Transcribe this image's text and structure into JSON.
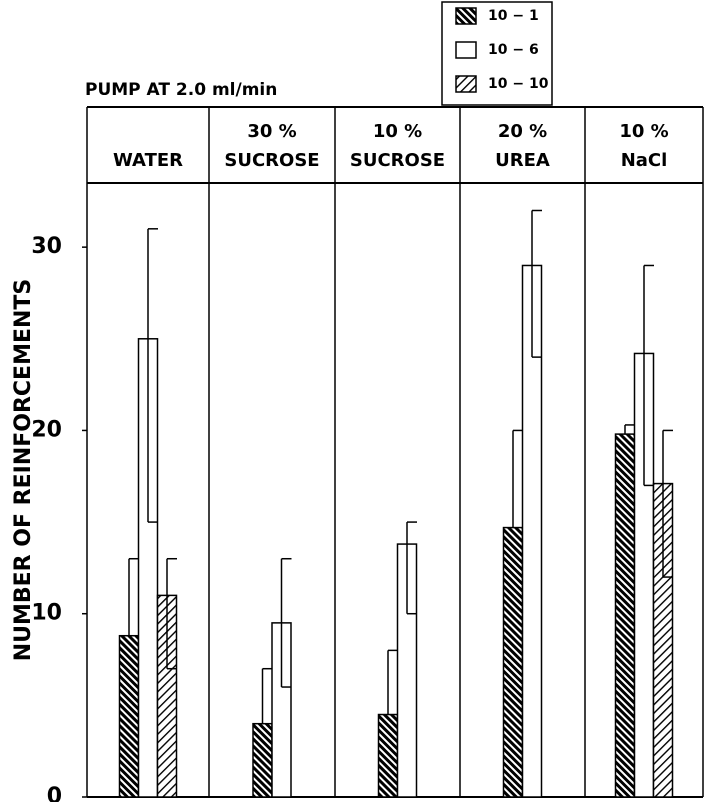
{
  "chart_data": {
    "type": "bar",
    "title": "PUMP AT 2.0 ml/min",
    "ylabel": "NUMBER OF REINFORCEMENTS",
    "categories": [
      [
        "WATER"
      ],
      [
        "30 %",
        "SUCROSE"
      ],
      [
        "10 %",
        "SUCROSE"
      ],
      [
        "20 %",
        "UREA"
      ],
      [
        "10 %",
        "NaCl"
      ]
    ],
    "series": [
      {
        "name": "10 − 1",
        "color": "#000000",
        "pattern": "dense-backslash",
        "values": [
          8.8,
          4,
          4.5,
          14.7,
          19.8
        ],
        "upper": [
          13,
          7,
          8,
          20,
          20.3
        ],
        "lower": [
          null,
          null,
          null,
          null,
          null
        ]
      },
      {
        "name": "10 − 6",
        "color": "#000000",
        "pattern": "none",
        "values": [
          25,
          9.5,
          13.8,
          29,
          24.2
        ],
        "upper": [
          31,
          13,
          15,
          32,
          29
        ],
        "lower": [
          15,
          6,
          10,
          24,
          17
        ]
      },
      {
        "name": "10 − 10",
        "color": "#000000",
        "pattern": "sparse-slash",
        "values": [
          11,
          null,
          null,
          null,
          17.1
        ],
        "upper": [
          13,
          null,
          null,
          null,
          20
        ],
        "lower": [
          7,
          null,
          null,
          null,
          12
        ]
      }
    ],
    "ylim": [
      0,
      33.5
    ],
    "yticks": [
      0,
      10,
      20,
      30
    ],
    "grid": false
  }
}
